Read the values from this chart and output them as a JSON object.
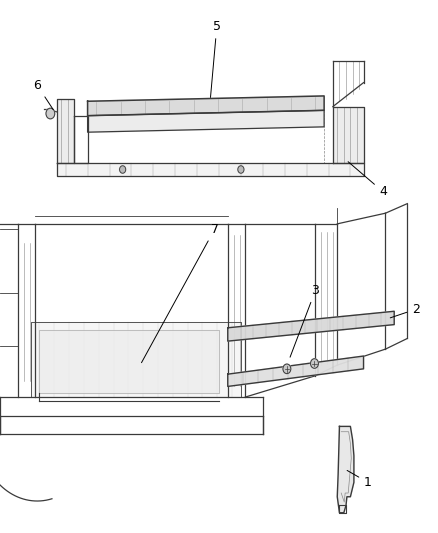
{
  "title": "",
  "background_color": "#ffffff",
  "line_color": "#4a4a4a",
  "callout_color": "#000000",
  "figsize": [
    4.38,
    5.33
  ],
  "dpi": 100
}
